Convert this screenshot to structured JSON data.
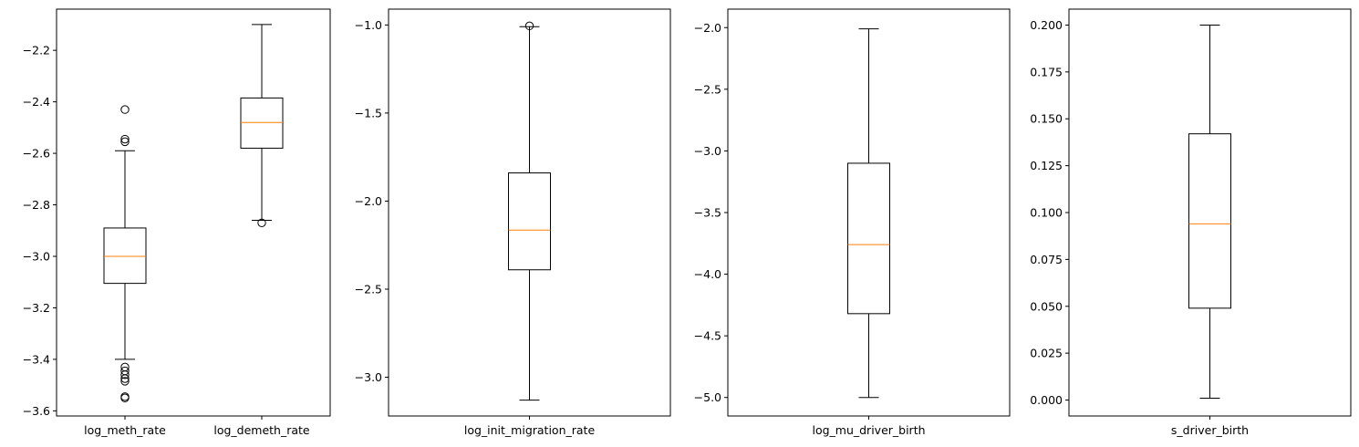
{
  "colors": {
    "box": "#000000",
    "median": "#ff7f0e",
    "background": "#ffffff"
  },
  "chart_data": [
    {
      "type": "box",
      "categories": [
        "log_meth_rate",
        "log_demeth_rate"
      ],
      "ylim": [
        -3.62,
        -2.04
      ],
      "yticks": [
        -2.2,
        -2.4,
        -2.6,
        -2.8,
        -3.0,
        -3.2,
        -3.4,
        -3.6
      ],
      "ytick_labels": [
        "−2.2",
        "−2.4",
        "−2.6",
        "−2.8",
        "−3.0",
        "−3.2",
        "−3.4",
        "−3.6"
      ],
      "boxes": [
        {
          "name": "log_meth_rate",
          "whisker_low": -3.4,
          "q1": -3.105,
          "median": -3.0,
          "q3": -2.89,
          "whisker_high": -2.59,
          "outliers": [
            -2.43,
            -2.545,
            -2.555,
            -3.43,
            -3.445,
            -3.46,
            -3.475,
            -3.485,
            -3.545,
            -3.55
          ]
        },
        {
          "name": "log_demeth_rate",
          "whisker_low": -2.86,
          "q1": -2.58,
          "median": -2.48,
          "q3": -2.385,
          "whisker_high": -2.1,
          "outliers": [
            -2.87
          ]
        }
      ],
      "grid": false
    },
    {
      "type": "box",
      "categories": [
        "log_init_migration_rate"
      ],
      "ylim": [
        -3.22,
        -0.91
      ],
      "yticks": [
        -1.0,
        -1.5,
        -2.0,
        -2.5,
        -3.0
      ],
      "ytick_labels": [
        "−1.0",
        "−1.5",
        "−2.0",
        "−2.5",
        "−3.0"
      ],
      "boxes": [
        {
          "name": "log_init_migration_rate",
          "whisker_low": -3.13,
          "q1": -2.39,
          "median": -2.165,
          "q3": -1.84,
          "whisker_high": -1.01,
          "outliers": [
            -1.005
          ]
        }
      ],
      "grid": false
    },
    {
      "type": "box",
      "categories": [
        "log_mu_driver_birth"
      ],
      "ylim": [
        -5.15,
        -1.85
      ],
      "yticks": [
        -2.0,
        -2.5,
        -3.0,
        -3.5,
        -4.0,
        -4.5,
        -5.0
      ],
      "ytick_labels": [
        "−2.0",
        "−2.5",
        "−3.0",
        "−3.5",
        "−4.0",
        "−4.5",
        "−5.0"
      ],
      "boxes": [
        {
          "name": "log_mu_driver_birth",
          "whisker_low": -5.0,
          "q1": -4.32,
          "median": -3.76,
          "q3": -3.1,
          "whisker_high": -2.01,
          "outliers": []
        }
      ],
      "grid": false
    },
    {
      "type": "box",
      "categories": [
        "s_driver_birth"
      ],
      "ylim": [
        -0.0085,
        0.2085
      ],
      "yticks": [
        0.0,
        0.025,
        0.05,
        0.075,
        0.1,
        0.125,
        0.15,
        0.175,
        0.2
      ],
      "ytick_labels": [
        "0.000",
        "0.025",
        "0.050",
        "0.075",
        "0.100",
        "0.125",
        "0.150",
        "0.175",
        "0.200"
      ],
      "boxes": [
        {
          "name": "s_driver_birth",
          "whisker_low": 0.001,
          "q1": 0.049,
          "median": 0.094,
          "q3": 0.142,
          "whisker_high": 0.2,
          "outliers": []
        }
      ],
      "grid": false
    }
  ]
}
